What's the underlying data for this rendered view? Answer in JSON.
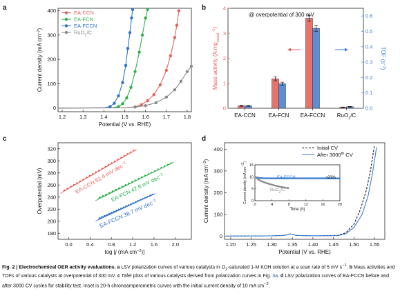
{
  "chart_data": [
    {
      "panel": "a",
      "type": "line",
      "xlabel": "Potential (V vs. RHE)",
      "ylabel": "Current density (mA cm",
      "ylabel_sup": "−2",
      "ylabel_end": ")",
      "xlim": [
        1.18,
        1.82
      ],
      "ylim": [
        -15,
        410
      ],
      "xticks": [
        "1.2",
        "1.3",
        "1.4",
        "1.5",
        "1.6",
        "1.7",
        "1.8"
      ],
      "yticks": [
        "0",
        "100",
        "200",
        "300",
        "400"
      ],
      "legend_position": "top-left",
      "series": [
        {
          "name": "EA-CCN",
          "color": "#e8605a",
          "marker": "circle",
          "x": [
            1.18,
            1.5,
            1.55,
            1.58,
            1.61,
            1.64,
            1.67,
            1.7,
            1.72,
            1.74,
            1.75,
            1.76
          ],
          "y": [
            0,
            1,
            5,
            14,
            30,
            55,
            95,
            155,
            215,
            290,
            340,
            400
          ]
        },
        {
          "name": "EA-FCN",
          "color": "#2bb24c",
          "marker": "circle",
          "x": [
            1.18,
            1.44,
            1.47,
            1.49,
            1.51,
            1.53,
            1.55,
            1.57,
            1.585,
            1.6,
            1.61
          ],
          "y": [
            0,
            1,
            6,
            18,
            42,
            85,
            150,
            230,
            300,
            370,
            405
          ]
        },
        {
          "name": "EA-FCCN",
          "color": "#2f73c9",
          "marker": "circle",
          "x": [
            1.18,
            1.4,
            1.43,
            1.45,
            1.47,
            1.49,
            1.505,
            1.515,
            1.525,
            1.533,
            1.538
          ],
          "y": [
            0,
            1,
            6,
            20,
            50,
            105,
            175,
            245,
            310,
            370,
            405
          ]
        },
        {
          "name": "RuO₂/C",
          "name_main": "RuO",
          "name_sub": "2",
          "name_end": "/C",
          "color": "#8a8a8a",
          "marker": "circle",
          "x": [
            1.18,
            1.5,
            1.55,
            1.6,
            1.65,
            1.7,
            1.74,
            1.77,
            1.8,
            1.82
          ],
          "y": [
            0,
            1,
            4,
            10,
            22,
            45,
            75,
            110,
            150,
            172
          ]
        }
      ]
    },
    {
      "panel": "b",
      "type": "bar",
      "title": "@ overpotential of 300 mV",
      "categories": [
        "EA-CCN",
        "EA-FCN",
        "EA-FCCN",
        "RuO₂/C"
      ],
      "categories_sub": [
        [
          "EA-CCN",
          "",
          ""
        ],
        [
          "EA-FCN",
          "",
          ""
        ],
        [
          "EA-FCCN",
          "",
          ""
        ],
        [
          "RuO",
          "2",
          "/C"
        ]
      ],
      "ylabel_left": "Mass activity (A mg",
      "ylabel_left_sub": "metal",
      "ylabel_left_sup": "−1",
      "ylabel_left_end": ")",
      "ylabel_right": "TOF (s",
      "ylabel_right_sup": "−1",
      "ylabel_right_end": ")",
      "ylim_left": [
        0,
        4
      ],
      "ylim_right": [
        0,
        0.65
      ],
      "yticks_left": [
        "0",
        "1",
        "2",
        "3",
        "4"
      ],
      "yticks_right": [
        "0.0",
        "0.1",
        "0.2",
        "0.3",
        "0.4",
        "0.5",
        "0.6"
      ],
      "series": [
        {
          "name": "Mass activity",
          "color": "#e8736d",
          "axis": "left",
          "values": [
            0.1,
            1.18,
            3.6,
            0.04
          ],
          "errors": [
            0.02,
            0.08,
            0.12,
            0.01
          ]
        },
        {
          "name": "TOF",
          "color": "#5a8fd6",
          "axis": "right",
          "values": [
            0.016,
            0.16,
            0.52,
            0.01
          ],
          "errors": [
            0.003,
            0.01,
            0.02,
            0.002
          ]
        }
      ]
    },
    {
      "panel": "c",
      "type": "scatter",
      "xlabel": "log [",
      "xlabel_j": "j",
      "xlabel_end": " (mA cm",
      "xlabel_sup": "−2",
      "xlabel_close": ")]",
      "ylabel": "Overpotential (mV)",
      "xlim": [
        -0.2,
        2.3
      ],
      "ylim": [
        170,
        330
      ],
      "xticks": [
        "0.0",
        "0.4",
        "0.8",
        "1.2",
        "1.6",
        "2.0"
      ],
      "yticks": [
        "180",
        "200",
        "220",
        "240",
        "260",
        "280",
        "300",
        "320"
      ],
      "series": [
        {
          "name": "EA-CCN",
          "color": "#e8605a",
          "slope_label": "51.4 mV dec",
          "slope_sup": "−1",
          "x_start": -0.08,
          "x_end": 1.22,
          "y_start": 250,
          "y_end": 316
        },
        {
          "name": "EA-FCN",
          "color": "#2bb24c",
          "slope_label": "42.6 mV dec",
          "slope_sup": "−1",
          "x_start": 0.58,
          "x_end": 1.92,
          "y_start": 238,
          "y_end": 295
        },
        {
          "name": "EA-FCCN",
          "color": "#2f73c9",
          "slope_label": "38.7 mV dec",
          "slope_sup": "−1",
          "x_start": 0.58,
          "x_end": 1.57,
          "y_start": 204,
          "y_end": 243
        }
      ]
    },
    {
      "panel": "d",
      "type": "line",
      "xlabel": "Potential (V vs. RHE)",
      "ylabel": "Current density (mA cm",
      "ylabel_sup": "−2",
      "ylabel_end": ")",
      "xlim": [
        1.185,
        1.575
      ],
      "ylim": [
        -15,
        430
      ],
      "xticks": [
        "1.20",
        "1.25",
        "1.30",
        "1.35",
        "1.40",
        "1.45",
        "1.50",
        "1.55"
      ],
      "yticks": [
        "0",
        "100",
        "200",
        "300",
        "400"
      ],
      "legend_position": "top-right",
      "series": [
        {
          "name": "Initial CV",
          "color": "#111111",
          "dash": true,
          "x": [
            1.19,
            1.3,
            1.33,
            1.345,
            1.36,
            1.4,
            1.46,
            1.48,
            1.5,
            1.515,
            1.53,
            1.54,
            1.55
          ],
          "y": [
            0,
            1,
            3,
            10,
            3,
            1,
            3,
            15,
            55,
            120,
            210,
            300,
            420
          ]
        },
        {
          "name": "After 3000",
          "name_sup": "th",
          "name_end": " CV",
          "color": "#3b7dd8",
          "dash": false,
          "x": [
            1.19,
            1.3,
            1.33,
            1.345,
            1.36,
            1.4,
            1.46,
            1.48,
            1.5,
            1.52,
            1.535,
            1.545,
            1.555
          ],
          "y": [
            0,
            1,
            3,
            9,
            3,
            1,
            2,
            10,
            40,
            100,
            190,
            290,
            410
          ]
        }
      ],
      "inset": {
        "type": "line",
        "xlabel": "Time (h)",
        "ylabel": "Current density (mA cm",
        "ylabel_sup": "−2",
        "ylabel_end": ")",
        "xlim": [
          0,
          20
        ],
        "ylim": [
          0,
          15
        ],
        "xticks": [
          "0",
          "4",
          "8",
          "12",
          "16",
          "20"
        ],
        "yticks": [
          "0",
          "5",
          "10",
          "15"
        ],
        "series": [
          {
            "name": "EA-FCCN",
            "color": "#3b7dd8",
            "x": [
              0,
              0.5,
              1,
              2,
              4,
              8,
              12,
              16,
              20
            ],
            "y": [
              10.0,
              9.7,
              9.5,
              9.4,
              9.35,
              9.35,
              9.35,
              9.35,
              9.3
            ]
          },
          {
            "name": "RuO₂/C",
            "name_main": "RuO",
            "name_sub": "2",
            "name_end": "/C",
            "color": "#8a8a8a",
            "x": [
              0,
              1,
              2,
              3,
              4,
              5,
              6,
              7,
              8
            ],
            "y": [
              10.0,
              8.6,
              7.8,
              7.2,
              6.7,
              6.2,
              5.8,
              5.5,
              5.2
            ]
          }
        ],
        "annotation": "~93%"
      }
    }
  ],
  "panel_labels": [
    "a",
    "b",
    "c",
    "d"
  ],
  "caption": {
    "fig_label": "Fig. 2 | Electrochemical OER activity evaluations.",
    "a_bold": "a",
    "a_text_1": " LSV polarization curves of various catalysts in O",
    "a_sub": "2",
    "a_text_2": "-saturated 1-M KOH solution at a scan rate of 5 mV s",
    "a_sup": "−1",
    "a_text_3": ".",
    "b_bold": "b",
    "b_text": " Mass activities and TOFs of various catalysts at overpotential of 300 mV.",
    "c_bold": "c",
    "c_text": " Tafel plots of various catalysts derived from polarization curves in Fig. ",
    "c_link": "3a",
    "c_end": ".",
    "d_bold": "d",
    "d_text": " LSV polarization curves of EA-FCCN before and after 3000 CV cycles for stability test. Inset is 20-h chronoamperometric curves with the initial current density of 10 mA cm",
    "d_sup": "−2",
    "d_end": "."
  }
}
